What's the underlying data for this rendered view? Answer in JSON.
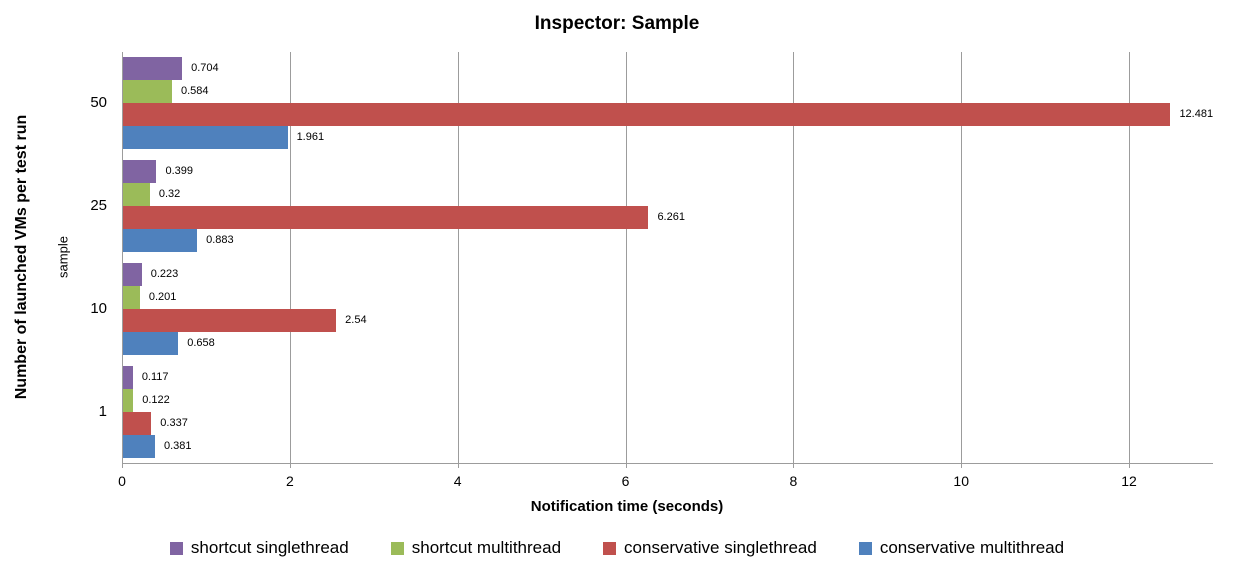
{
  "chart_data": {
    "type": "bar",
    "orientation": "horizontal",
    "title": "Inspector: Sample",
    "xlabel": "Notification time (seconds)",
    "ylabel_primary": "Number of launched VMs per test run",
    "ylabel_secondary": "sample",
    "categories": [
      "50",
      "25",
      "10",
      "1"
    ],
    "series": [
      {
        "name": "shortcut singlethread",
        "color": "#8064A2",
        "values": [
          0.704,
          0.399,
          0.223,
          0.117
        ],
        "labels": [
          "0.704",
          "0.399",
          "0.223",
          "0.117"
        ]
      },
      {
        "name": "shortcut multithread",
        "color": "#9BBB59",
        "values": [
          0.584,
          0.32,
          0.201,
          0.122
        ],
        "labels": [
          "0.584",
          "0.32",
          "0.201",
          "0.122"
        ]
      },
      {
        "name": "conservative singlethread",
        "color": "#C0504D",
        "values": [
          12.481,
          6.261,
          2.54,
          0.337
        ],
        "labels": [
          "12.481",
          "6.261",
          "2.54",
          "0.337"
        ]
      },
      {
        "name": "conservative multithread",
        "color": "#4F81BD",
        "values": [
          1.961,
          0.883,
          0.658,
          0.381
        ],
        "labels": [
          "1.961",
          "0.883",
          "0.658",
          "0.381"
        ]
      }
    ],
    "xlim": [
      0,
      13
    ],
    "xticks": [
      0,
      2,
      4,
      6,
      8,
      10,
      12
    ],
    "xtick_labels": [
      "0",
      "2",
      "4",
      "6",
      "8",
      "10",
      "12"
    ],
    "grid": true,
    "legend_position": "bottom",
    "colors": {
      "axis": "#9c9c9c",
      "gridline": "#9c9c9c",
      "text": "#000000",
      "background": "#ffffff"
    }
  }
}
